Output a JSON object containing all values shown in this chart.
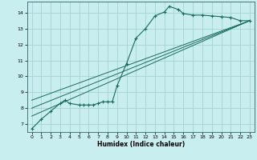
{
  "xlabel": "Humidex (Indice chaleur)",
  "bg_color": "#c8eef0",
  "grid_color": "#9ecfcc",
  "line_color": "#1a6b5a",
  "xlim": [
    -0.5,
    23.5
  ],
  "ylim": [
    6.5,
    14.7
  ],
  "xticks": [
    0,
    1,
    2,
    3,
    4,
    5,
    6,
    7,
    8,
    9,
    10,
    11,
    12,
    13,
    14,
    15,
    16,
    17,
    18,
    19,
    20,
    21,
    22,
    23
  ],
  "yticks": [
    7,
    8,
    9,
    10,
    11,
    12,
    13,
    14
  ],
  "line1_x": [
    0,
    1,
    2,
    3,
    3.5,
    4,
    5,
    5.5,
    6,
    6.5,
    7,
    7.5,
    8,
    8.5,
    9,
    10,
    11,
    12,
    13,
    14,
    14.5,
    15.5,
    16,
    17,
    18,
    19,
    20,
    21,
    22,
    23
  ],
  "line1_y": [
    6.7,
    7.3,
    7.8,
    8.3,
    8.5,
    8.3,
    8.2,
    8.2,
    8.2,
    8.2,
    8.3,
    8.4,
    8.4,
    8.4,
    9.4,
    10.8,
    12.4,
    13.0,
    13.8,
    14.05,
    14.4,
    14.2,
    13.95,
    13.85,
    13.85,
    13.8,
    13.75,
    13.7,
    13.5,
    13.5
  ],
  "line2_x": [
    0,
    23
  ],
  "line2_y": [
    7.5,
    13.5
  ],
  "line3_x": [
    0,
    23
  ],
  "line3_y": [
    8.0,
    13.5
  ],
  "line4_x": [
    0,
    23
  ],
  "line4_y": [
    8.5,
    13.5
  ]
}
